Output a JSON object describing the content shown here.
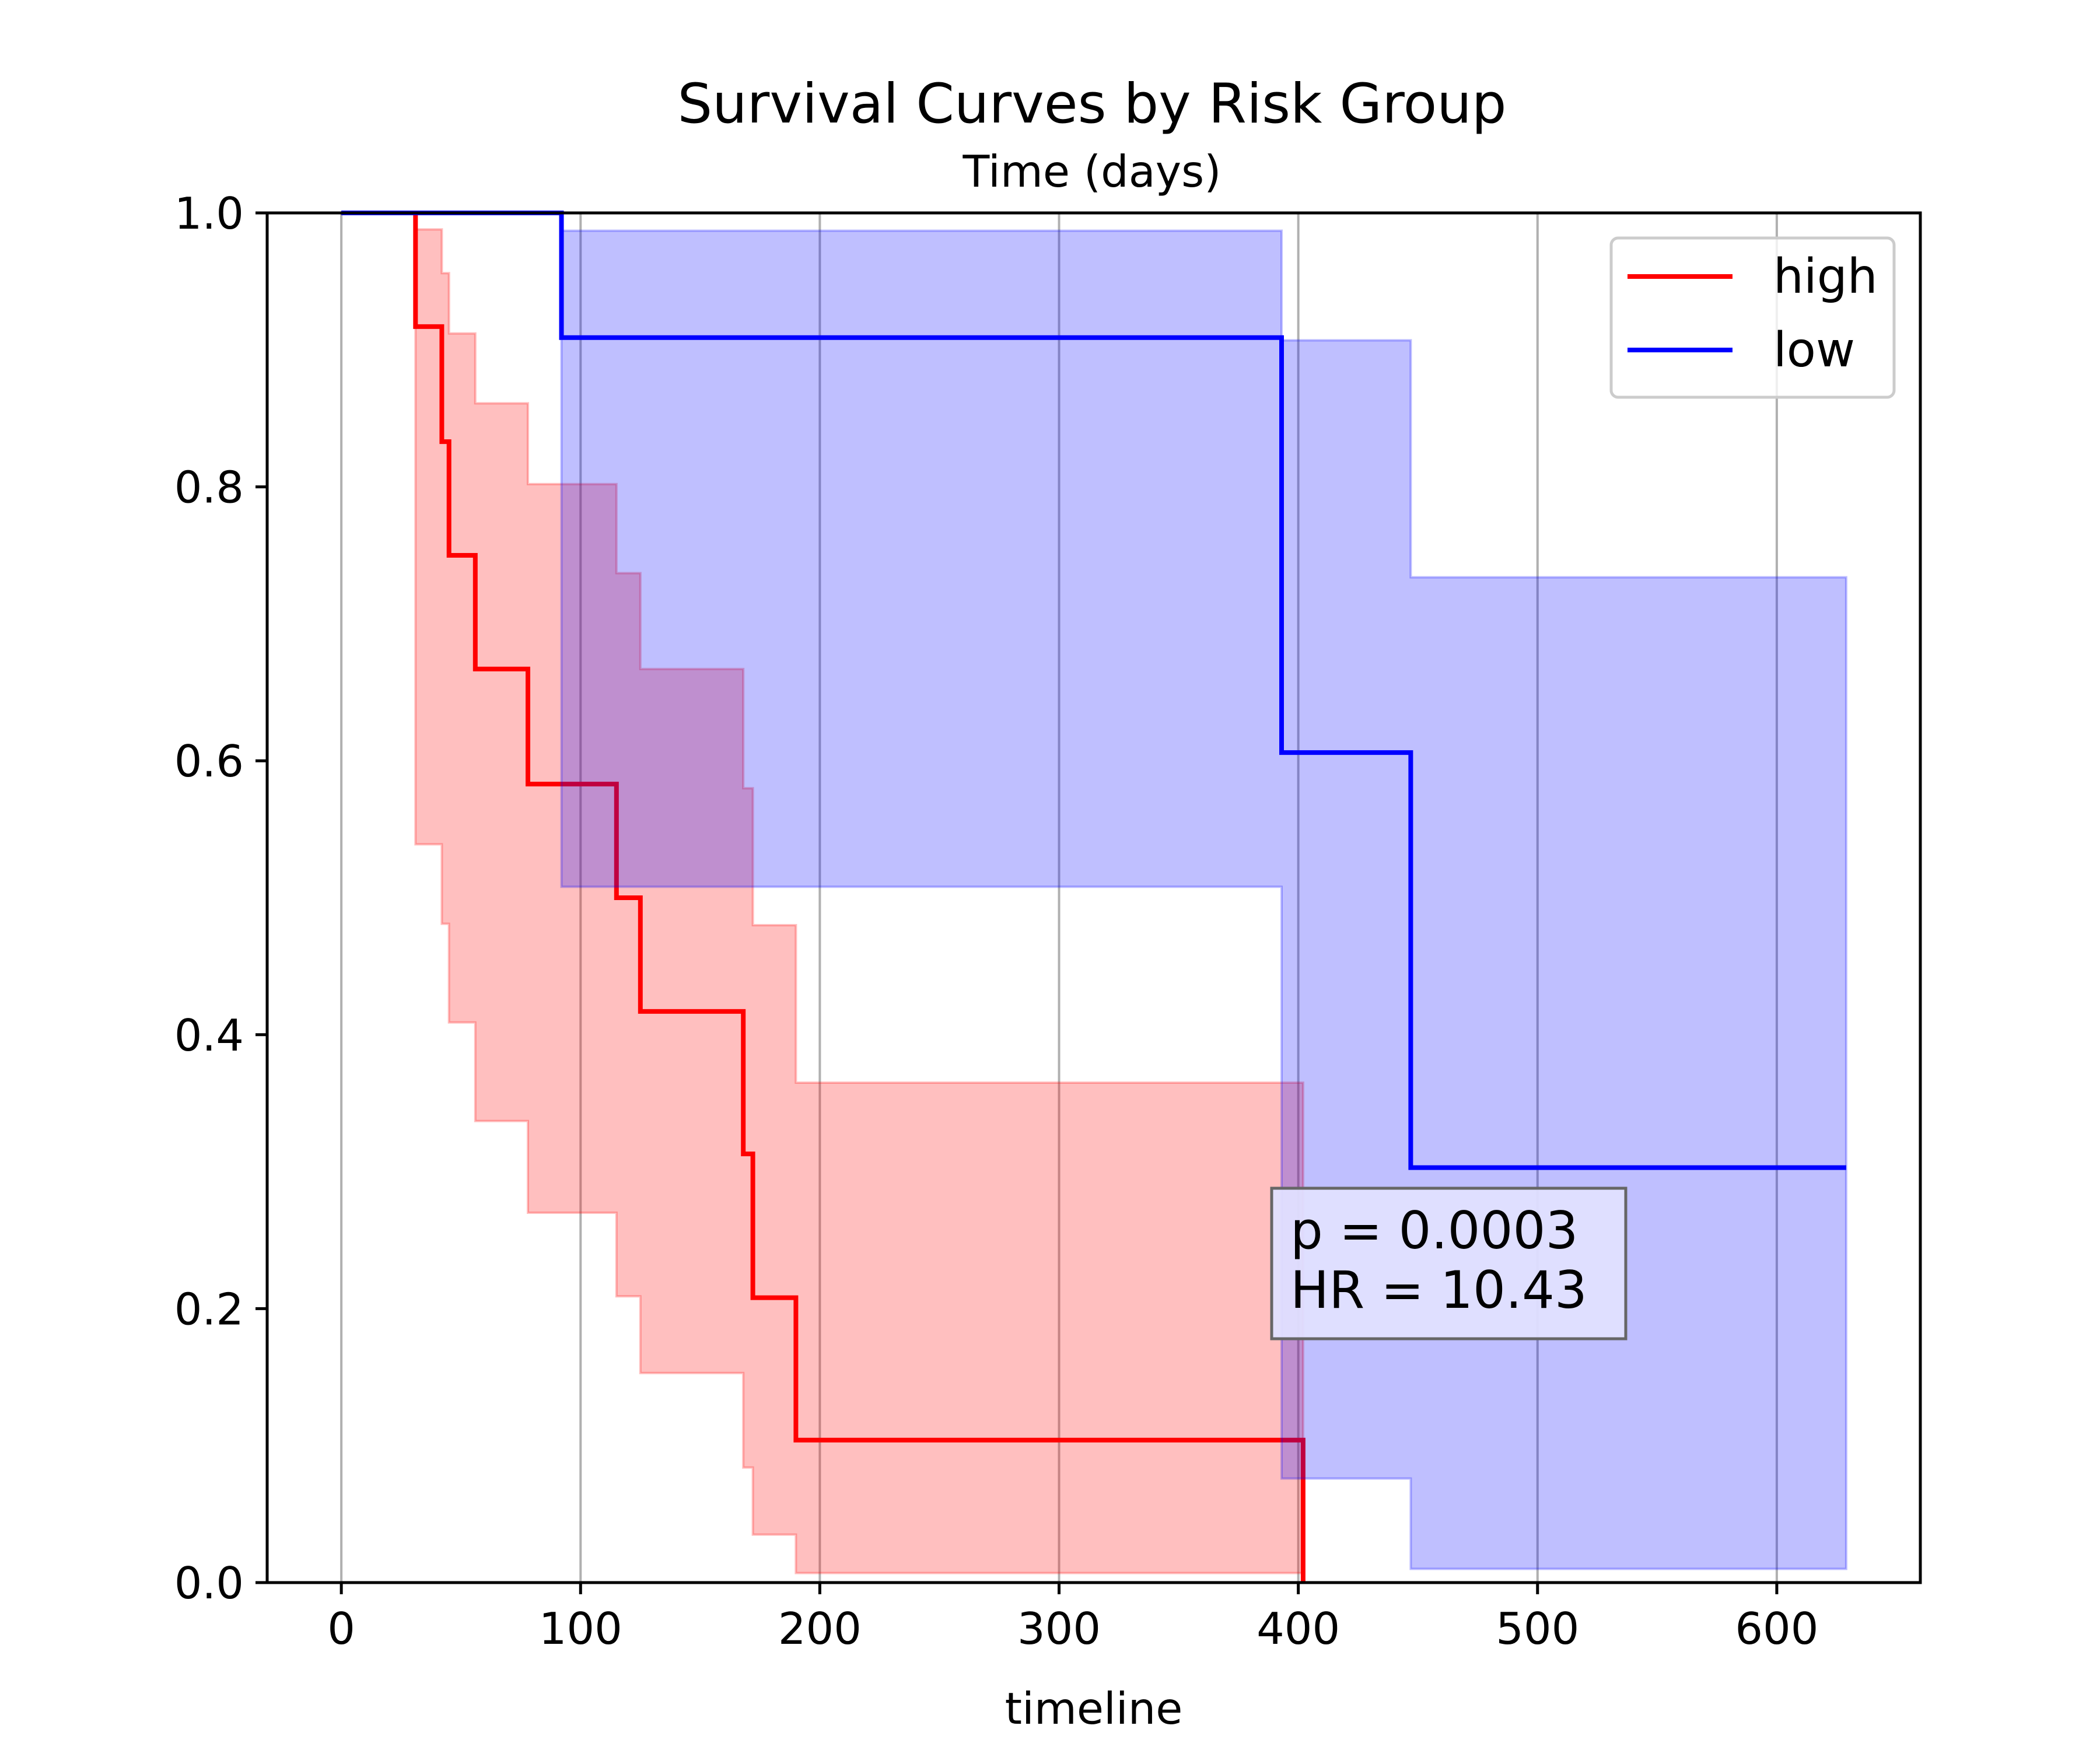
{
  "chart_data": {
    "type": "line",
    "title": "Survival Curves by Risk Group",
    "subtitle": "Time (days)",
    "xlabel": "timeline",
    "ylabel": "",
    "xlim": [
      -31,
      660
    ],
    "ylim": [
      0,
      1
    ],
    "xticks": [
      0,
      100,
      200,
      300,
      400,
      500,
      600
    ],
    "yticks": [
      0.0,
      0.2,
      0.4,
      0.6,
      0.8,
      1.0
    ],
    "xtick_labels": [
      "0",
      "100",
      "200",
      "300",
      "400",
      "500",
      "600"
    ],
    "ytick_labels": [
      "0.0",
      "0.2",
      "0.4",
      "0.6",
      "0.8",
      "1.0"
    ],
    "grid": "vertical",
    "legend_position": "top-right",
    "series": [
      {
        "name": "high",
        "color": "#ff0000",
        "steps": [
          [
            0,
            1.0
          ],
          [
            31,
            0.917
          ],
          [
            42,
            0.833
          ],
          [
            45,
            0.75
          ],
          [
            56,
            0.667
          ],
          [
            78,
            0.583
          ],
          [
            115,
            0.5
          ],
          [
            125,
            0.417
          ],
          [
            168,
            0.313
          ],
          [
            172,
            0.208
          ],
          [
            190,
            0.104
          ],
          [
            402,
            0.0
          ]
        ],
        "ci_steps": [
          [
            31,
            0.539,
            0.988
          ],
          [
            42,
            0.481,
            0.956
          ],
          [
            45,
            0.409,
            0.912
          ],
          [
            56,
            0.337,
            0.861
          ],
          [
            78,
            0.27,
            0.802
          ],
          [
            115,
            0.209,
            0.737
          ],
          [
            125,
            0.153,
            0.667
          ],
          [
            168,
            0.084,
            0.58
          ],
          [
            172,
            0.035,
            0.48
          ],
          [
            190,
            0.007,
            0.365
          ],
          [
            402,
            0.007,
            0.365
          ]
        ]
      },
      {
        "name": "low",
        "color": "#0000ff",
        "steps": [
          [
            0,
            1.0
          ],
          [
            92,
            0.909
          ],
          [
            393,
            0.606
          ],
          [
            447,
            0.303
          ],
          [
            629,
            0.303
          ]
        ],
        "ci_steps": [
          [
            92,
            0.508,
            0.987
          ],
          [
            393,
            0.076,
            0.907
          ],
          [
            447,
            0.01,
            0.734
          ],
          [
            629,
            0.01,
            0.734
          ]
        ]
      }
    ],
    "annotation": {
      "lines": [
        "p = 0.0003",
        "HR = 10.43"
      ]
    }
  }
}
